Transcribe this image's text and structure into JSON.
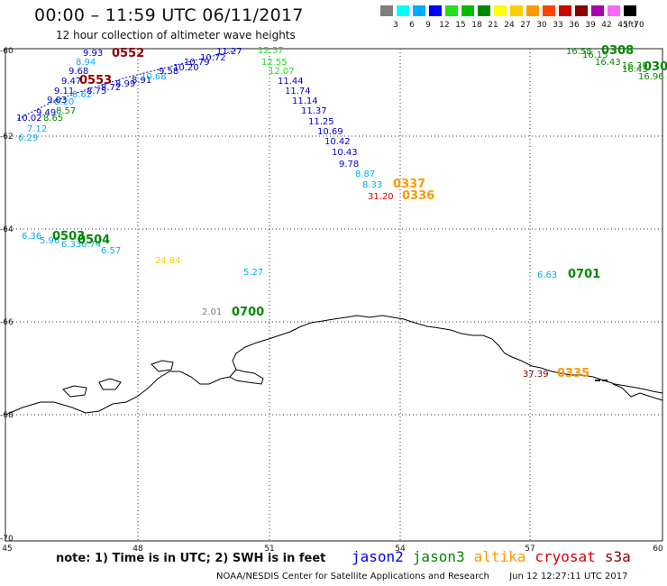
{
  "title": "00:00 – 11:59 UTC 06/11/2017",
  "subtitle": "12 hour collection of altimeter wave heights",
  "colorbar": {
    "unit_label": "(ft)",
    "ticks": [
      "3",
      "6",
      "9",
      "12",
      "15",
      "18",
      "21",
      "24",
      "27",
      "30",
      "33",
      "36",
      "39",
      "42",
      "45",
      "70"
    ],
    "colors": [
      "#7f7f7f",
      "#00ffff",
      "#00aaff",
      "#0000ff",
      "#22dd22",
      "#00bb00",
      "#008800",
      "#ffff00",
      "#ffcc00",
      "#ff9900",
      "#ff4400",
      "#cc0000",
      "#880000",
      "#aa00aa",
      "#ff66ff",
      "#000000"
    ]
  },
  "axes": {
    "lat_labels": [
      "-60",
      "-62",
      "-64",
      "-66",
      "-68",
      "-70"
    ],
    "lon_labels": [
      "45",
      "48",
      "51",
      "54",
      "57",
      "60"
    ]
  },
  "footer_note": "note: 1) Time is in UTC; 2) SWH is in feet",
  "satellites": [
    {
      "name": "jason2",
      "color": "#0000ee"
    },
    {
      "name": "jason3",
      "color": "#008800"
    },
    {
      "name": "altika",
      "color": "#ff9900"
    },
    {
      "name": "cryosat",
      "color": "#dd0000"
    },
    {
      "name": "s3a",
      "color": "#880000"
    }
  ],
  "credit": "NOAA/NESDIS Center for Satellite Applications and Research",
  "timestamp": "Jun 12 12:27:11 UTC 2017",
  "time_labels": [
    {
      "text": "0552",
      "color": "#880000"
    },
    {
      "text": "0553",
      "color": "#880000"
    },
    {
      "text": "0308",
      "color": "#008800"
    },
    {
      "text": "030",
      "color": "#008800"
    },
    {
      "text": "0337",
      "color": "#ff9900"
    },
    {
      "text": "0336",
      "color": "#ff9900"
    },
    {
      "text": "0503",
      "color": "#008800"
    },
    {
      "text": "0504",
      "color": "#008800"
    },
    {
      "text": "0701",
      "color": "#008800"
    },
    {
      "text": "0700",
      "color": "#008800"
    },
    {
      "text": "0335",
      "color": "#ff9900"
    }
  ],
  "swh_values": [
    {
      "text": "9.93",
      "color": "#0000cc"
    },
    {
      "text": "8.94",
      "color": "#00aaff"
    },
    {
      "text": "9.68",
      "color": "#0000cc"
    },
    {
      "text": "9.47",
      "color": "#0000cc"
    },
    {
      "text": "9.11",
      "color": "#0000cc"
    },
    {
      "text": "9.03",
      "color": "#0000cc"
    },
    {
      "text": "7.12",
      "color": "#00aaff"
    },
    {
      "text": "6.29",
      "color": "#00aaff"
    },
    {
      "text": "12.57",
      "color": "#22dd22"
    },
    {
      "text": "12.55",
      "color": "#22dd22"
    },
    {
      "text": "12.07",
      "color": "#22dd22"
    },
    {
      "text": "11.44",
      "color": "#0000cc"
    },
    {
      "text": "11.74",
      "color": "#0000cc"
    },
    {
      "text": "11.14",
      "color": "#0000cc"
    },
    {
      "text": "11.37",
      "color": "#0000cc"
    },
    {
      "text": "11.25",
      "color": "#0000cc"
    },
    {
      "text": "10.69",
      "color": "#0000cc"
    },
    {
      "text": "10.42",
      "color": "#0000cc"
    },
    {
      "text": "10.43",
      "color": "#0000cc"
    },
    {
      "text": "9.78",
      "color": "#0000cc"
    },
    {
      "text": "8.87",
      "color": "#00aaff"
    },
    {
      "text": "8.33",
      "color": "#00aaff"
    },
    {
      "text": "31.20",
      "color": "#dd0000"
    },
    {
      "text": "16.58",
      "color": "#008800"
    },
    {
      "text": "16.39",
      "color": "#008800"
    },
    {
      "text": "6.36",
      "color": "#00aaff"
    },
    {
      "text": "6.57",
      "color": "#00aaff"
    },
    {
      "text": "24.84",
      "color": "#ffcc00"
    },
    {
      "text": "5.27",
      "color": "#00aaff"
    },
    {
      "text": "2.01",
      "color": "#7f7f7f"
    },
    {
      "text": "6.63",
      "color": "#00aaff"
    },
    {
      "text": "37.39",
      "color": "#880000"
    }
  ]
}
